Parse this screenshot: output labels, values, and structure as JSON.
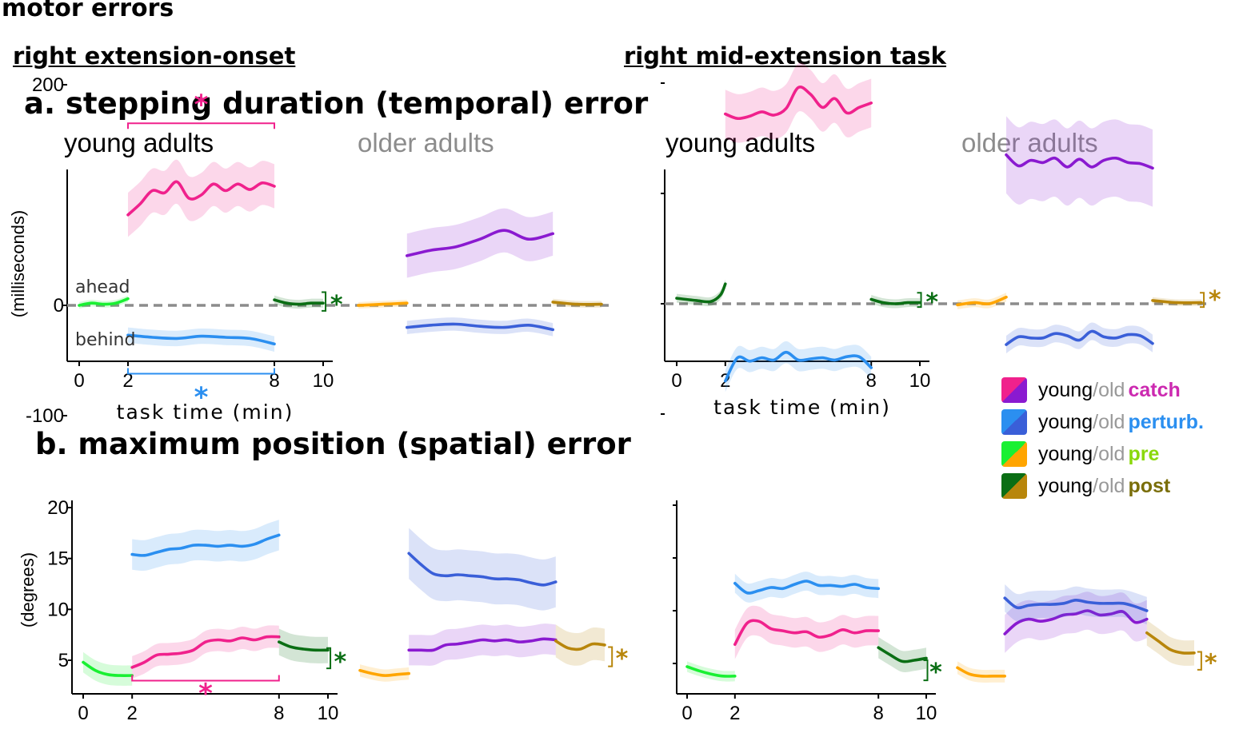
{
  "figure": {
    "title": "motor errors",
    "left_task": "right extension-onset",
    "right_task": "right mid-extension task",
    "panel_a": "a. stepping duration (temporal) error",
    "panel_b": "b. maximum position (spatial) error",
    "young_label": "young adults",
    "old_label": "older adults"
  },
  "legend": {
    "young": "young",
    "slash": "/",
    "old": "old",
    "items": [
      {
        "cond": "catch",
        "color_young": "#f0218c",
        "color_old": "#8a1ad0",
        "text_color": "#cc2ab0"
      },
      {
        "cond": "perturb.",
        "color_young": "#2b8ff0",
        "color_old": "#3a5fd8",
        "text_color": "#2b8ff0"
      },
      {
        "cond": "pre",
        "color_young": "#19f032",
        "color_old": "#ffa500",
        "text_color": "#8ad80a"
      },
      {
        "cond": "post",
        "color_young": "#0a6e14",
        "color_old": "#b8860b",
        "text_color": "#7a6e0a"
      }
    ]
  },
  "colors": {
    "young_catch": "#f0218c",
    "old_catch": "#8a1ad0",
    "young_perturb": "#2b8ff0",
    "old_perturb": "#3a5fd8",
    "young_pre": "#19f032",
    "old_pre": "#ffa500",
    "young_post": "#0a6e14",
    "old_post": "#b8860b",
    "zero_line": "#8c8c8c"
  },
  "chart_data": [
    {
      "id": "a-onset",
      "type": "line",
      "panel": "a. stepping duration (temporal) error",
      "task": "right extension-onset",
      "ylabel": "(milliseconds)",
      "xlabel": "task time (min)",
      "ylim": [
        -120,
        240
      ],
      "yticks": [
        -100,
        0,
        200
      ],
      "ytick_labels": [
        "-100",
        "0",
        "200"
      ],
      "xticks": [
        0,
        2,
        8,
        10
      ],
      "xlim": [
        -0.4,
        10.5
      ],
      "zero_line": true,
      "annotations": {
        "ahead": "ahead",
        "behind": "behind",
        "star": "*"
      },
      "sig_brackets": [
        {
          "cond": "catch",
          "from": 2,
          "to": 8,
          "y": 165,
          "star_y": 185
        },
        {
          "cond": "perturb",
          "from": 2,
          "to": 8,
          "y": -62,
          "star_y": -80
        },
        {
          "cond": "post_young",
          "bracket_x": 10.1,
          "y1": 12,
          "y2": -5,
          "star_x": 10.55,
          "star_y": 2
        }
      ],
      "older_sig_brackets": [],
      "young": [
        {
          "cond": "pre",
          "x": [
            0,
            0.5,
            1,
            1.5,
            2
          ],
          "y": [
            0,
            2,
            1,
            2,
            6
          ],
          "band": 3
        },
        {
          "cond": "catch",
          "x": [
            2,
            2.5,
            3,
            3.5,
            4,
            4.5,
            5,
            5.5,
            6,
            6.5,
            7,
            7.5,
            8
          ],
          "y": [
            82,
            92,
            104,
            102,
            112,
            97,
            100,
            110,
            104,
            110,
            105,
            111,
            108
          ],
          "band": 20
        },
        {
          "cond": "perturb",
          "x": [
            2,
            3,
            4,
            5,
            6,
            7,
            8
          ],
          "y": [
            -27,
            -29,
            -30,
            -28,
            -29,
            -30,
            -35
          ],
          "band": 7
        },
        {
          "cond": "post",
          "x": [
            8,
            8.5,
            9,
            9.5,
            10
          ],
          "y": [
            5,
            2,
            1,
            2,
            2
          ],
          "band": 4
        }
      ],
      "old": [
        {
          "cond": "pre",
          "x": [
            0,
            1,
            2
          ],
          "y": [
            0,
            1,
            2
          ],
          "band": 3
        },
        {
          "cond": "catch",
          "x": [
            2,
            3,
            4,
            5,
            6,
            7,
            8
          ],
          "y": [
            45,
            50,
            53,
            60,
            68,
            60,
            65
          ],
          "band": 20
        },
        {
          "cond": "perturb",
          "x": [
            2,
            3,
            4,
            5,
            6,
            7,
            8
          ],
          "y": [
            -20,
            -18,
            -17,
            -19,
            -20,
            -18,
            -22
          ],
          "band": 6
        },
        {
          "cond": "post",
          "x": [
            8,
            9,
            10
          ],
          "y": [
            3,
            1,
            1
          ],
          "band": 3
        }
      ]
    },
    {
      "id": "a-mid",
      "type": "line",
      "panel": "a. stepping duration (temporal) error",
      "task": "right mid-extension task",
      "xlabel": "task time (min)",
      "ylim": [
        -120,
        240
      ],
      "yticks": [
        -100,
        0,
        100,
        200
      ],
      "xticks": [
        0,
        2,
        8,
        10
      ],
      "xlim": [
        -0.4,
        10.5
      ],
      "zero_line": true,
      "young_star": {
        "bracket_x": 10.05,
        "y1": 10,
        "y2": -3,
        "star_x": 10.5,
        "star_y": 3
      },
      "old_star": {
        "bracket_x": 10.1,
        "y1": 10,
        "y2": -3,
        "star_x": 10.55,
        "star_y": 5
      },
      "young": [
        {
          "cond": "post_pre",
          "x": [
            0,
            0.8,
            1.4,
            1.8,
            2
          ],
          "y": [
            5,
            3,
            2,
            8,
            18
          ],
          "band": 4
        },
        {
          "cond": "catch",
          "x": [
            2,
            2.5,
            3,
            3.5,
            4,
            4.5,
            5,
            5.5,
            6,
            6.5,
            7,
            7.5,
            8
          ],
          "y": [
            172,
            168,
            170,
            174,
            171,
            177,
            196,
            190,
            178,
            186,
            173,
            178,
            182
          ],
          "band": 22
        },
        {
          "cond": "perturb",
          "x": [
            2,
            2.5,
            3,
            3.5,
            4,
            4.5,
            5,
            5.5,
            6,
            6.5,
            7,
            7.5,
            8
          ],
          "y": [
            -70,
            -49,
            -52,
            -49,
            -51,
            -44,
            -51,
            -50,
            -49,
            -51,
            -48,
            -48,
            -58
          ],
          "band": 10
        },
        {
          "cond": "post",
          "x": [
            8,
            8.5,
            9,
            9.5,
            10
          ],
          "y": [
            4,
            1,
            0,
            1,
            1
          ],
          "band": 4
        }
      ],
      "old": [
        {
          "cond": "pre",
          "x": [
            0,
            0.7,
            1.3,
            2
          ],
          "y": [
            -1,
            1,
            0,
            6
          ],
          "band": 4
        },
        {
          "cond": "catch",
          "x": [
            2,
            2.5,
            3,
            3.5,
            4,
            4.5,
            5,
            5.5,
            6,
            6.5,
            7,
            7.5,
            8
          ],
          "y": [
            135,
            125,
            130,
            128,
            132,
            124,
            131,
            124,
            130,
            132,
            128,
            127,
            123
          ],
          "band": 35
        },
        {
          "cond": "perturb",
          "x": [
            2,
            2.5,
            3,
            3.5,
            4,
            4.5,
            5,
            5.5,
            6,
            6.5,
            7,
            7.5,
            8
          ],
          "y": [
            -37,
            -30,
            -31,
            -31,
            -27,
            -29,
            -33,
            -25,
            -30,
            -31,
            -28,
            -29,
            -36
          ],
          "band": 8
        },
        {
          "cond": "post",
          "x": [
            8,
            9,
            10
          ],
          "y": [
            3,
            1,
            1
          ],
          "band": 3
        }
      ]
    },
    {
      "id": "b-onset",
      "type": "line",
      "panel": "b. maximum position (spatial) error",
      "task": "right extension-onset",
      "ylabel": "(degrees)",
      "ylim": [
        2.5,
        20.5
      ],
      "yticks": [
        5,
        10,
        15,
        20
      ],
      "xticks": [
        0,
        2,
        8,
        10
      ],
      "xlim": [
        -0.4,
        10.5
      ],
      "sig_brackets": [
        {
          "cond": "catch",
          "from": 2,
          "to": 8,
          "y": 3.0,
          "star_y": 2.1
        },
        {
          "cond": "post_young",
          "bracket_x": 10.1,
          "y1": 6.2,
          "y2": 4.2,
          "star_x": 10.5,
          "star_y": 5.0
        }
      ],
      "old_star": {
        "bracket_x": 10.3,
        "y1": 6.3,
        "y2": 4.4,
        "star_x": 10.7,
        "star_y": 5.3
      },
      "young": [
        {
          "cond": "pre",
          "x": [
            0,
            0.5,
            1,
            1.5,
            2
          ],
          "y": [
            4.8,
            4.0,
            3.6,
            3.5,
            3.5
          ],
          "band": 1.0
        },
        {
          "cond": "catch",
          "x": [
            2,
            2.5,
            3,
            3.5,
            4,
            4.5,
            5,
            5.5,
            6,
            6.5,
            7,
            7.5,
            8
          ],
          "y": [
            4.3,
            4.8,
            5.5,
            5.6,
            5.7,
            6.0,
            6.8,
            7.0,
            6.9,
            7.2,
            7.0,
            7.3,
            7.3
          ],
          "band": 1.1
        },
        {
          "cond": "perturb",
          "x": [
            2,
            2.5,
            3,
            3.5,
            4,
            4.5,
            5,
            5.5,
            6,
            6.5,
            7,
            7.5,
            8
          ],
          "y": [
            15.4,
            15.3,
            15.6,
            15.9,
            16.0,
            16.3,
            16.3,
            16.2,
            16.3,
            16.2,
            16.4,
            16.9,
            17.3
          ],
          "band": 1.5
        },
        {
          "cond": "post",
          "x": [
            8,
            8.5,
            9,
            9.5,
            10
          ],
          "y": [
            6.8,
            6.3,
            6.1,
            6.0,
            6.0
          ],
          "band": 1.3
        }
      ],
      "old": [
        {
          "cond": "pre",
          "x": [
            0,
            0.5,
            1,
            1.5,
            2
          ],
          "y": [
            4.0,
            3.7,
            3.5,
            3.6,
            3.7
          ],
          "band": 0.6
        },
        {
          "cond": "catch",
          "x": [
            2,
            2.5,
            3,
            3.5,
            4,
            4.5,
            5,
            5.5,
            6,
            6.5,
            7,
            7.5,
            8
          ],
          "y": [
            6.0,
            6.0,
            6.0,
            6.5,
            6.6,
            6.8,
            7.0,
            6.9,
            7.0,
            6.8,
            6.9,
            7.1,
            7.0
          ],
          "band": 1.5
        },
        {
          "cond": "perturb",
          "x": [
            2,
            2.5,
            3,
            3.5,
            4,
            4.5,
            5,
            5.5,
            6,
            6.5,
            7,
            7.5,
            8
          ],
          "y": [
            15.5,
            14.4,
            13.5,
            13.3,
            13.4,
            13.3,
            13.2,
            13.0,
            13.0,
            12.9,
            12.6,
            12.4,
            12.7
          ],
          "band": 2.5
        },
        {
          "cond": "post",
          "x": [
            8,
            8.5,
            9,
            9.5,
            10
          ],
          "y": [
            6.9,
            6.2,
            6.1,
            6.6,
            6.5
          ],
          "band": 1.6
        }
      ]
    },
    {
      "id": "b-mid",
      "type": "line",
      "panel": "b. maximum position (spatial) error",
      "task": "right mid-extension task",
      "ylim": [
        2.5,
        20.5
      ],
      "yticks": [
        5,
        10,
        15,
        20
      ],
      "xticks": [
        0,
        2,
        8,
        10
      ],
      "xlim": [
        -0.4,
        10.5
      ],
      "young_star": {
        "bracket_x": 10.05,
        "y1": 5.3,
        "y2": 3.4,
        "star_x": 10.4,
        "star_y": 4.3
      },
      "old_star": {
        "bracket_x": 10.3,
        "y1": 6.1,
        "y2": 4.4,
        "star_x": 10.7,
        "star_y": 5.2
      },
      "young": [
        {
          "cond": "pre",
          "x": [
            0,
            0.5,
            1,
            1.5,
            2
          ],
          "y": [
            4.7,
            4.3,
            4.0,
            3.8,
            3.8
          ],
          "band": 0.5
        },
        {
          "cond": "catch",
          "x": [
            2,
            2.5,
            3,
            3.5,
            4,
            4.5,
            5,
            5.5,
            6,
            6.5,
            7,
            7.5,
            8
          ],
          "y": [
            6.8,
            8.8,
            9.0,
            8.3,
            8.1,
            7.9,
            8.0,
            7.5,
            7.7,
            8.2,
            7.9,
            8.1,
            8.1
          ],
          "band": 1.4
        },
        {
          "cond": "perturb",
          "x": [
            2,
            2.5,
            3,
            3.5,
            4,
            4.5,
            5,
            5.5,
            6,
            6.5,
            7,
            7.5,
            8
          ],
          "y": [
            12.6,
            11.7,
            11.9,
            12.2,
            12.1,
            12.5,
            12.8,
            12.4,
            12.4,
            12.3,
            12.5,
            12.2,
            12.1
          ],
          "band": 0.9
        },
        {
          "cond": "post",
          "x": [
            8,
            8.5,
            9,
            9.5,
            10
          ],
          "y": [
            6.5,
            5.8,
            5.2,
            5.3,
            5.5
          ],
          "band": 1.0
        }
      ],
      "old": [
        {
          "cond": "pre",
          "x": [
            0,
            0.5,
            1,
            1.5,
            2
          ],
          "y": [
            4.6,
            4.0,
            3.8,
            3.8,
            3.8
          ],
          "band": 0.6
        },
        {
          "cond": "catch",
          "x": [
            2,
            2.5,
            3,
            3.5,
            4,
            4.5,
            5,
            5.5,
            6,
            6.5,
            7,
            7.5,
            8
          ],
          "y": [
            7.8,
            8.8,
            9.2,
            9.0,
            9.2,
            9.6,
            9.7,
            10.0,
            9.6,
            9.7,
            9.9,
            8.9,
            9.2
          ],
          "band": 1.8
        },
        {
          "cond": "perturb",
          "x": [
            2,
            2.5,
            3,
            3.5,
            4,
            4.5,
            5,
            5.5,
            6,
            6.5,
            7,
            7.5,
            8
          ],
          "y": [
            11.2,
            10.3,
            10.5,
            10.6,
            10.6,
            10.7,
            11.0,
            10.8,
            10.7,
            10.7,
            10.7,
            10.4,
            10.0
          ],
          "band": 1.3
        },
        {
          "cond": "post",
          "x": [
            8,
            8.5,
            9,
            9.5,
            10
          ],
          "y": [
            7.9,
            7.1,
            6.3,
            6.0,
            6.0
          ],
          "band": 1.2
        }
      ]
    }
  ]
}
